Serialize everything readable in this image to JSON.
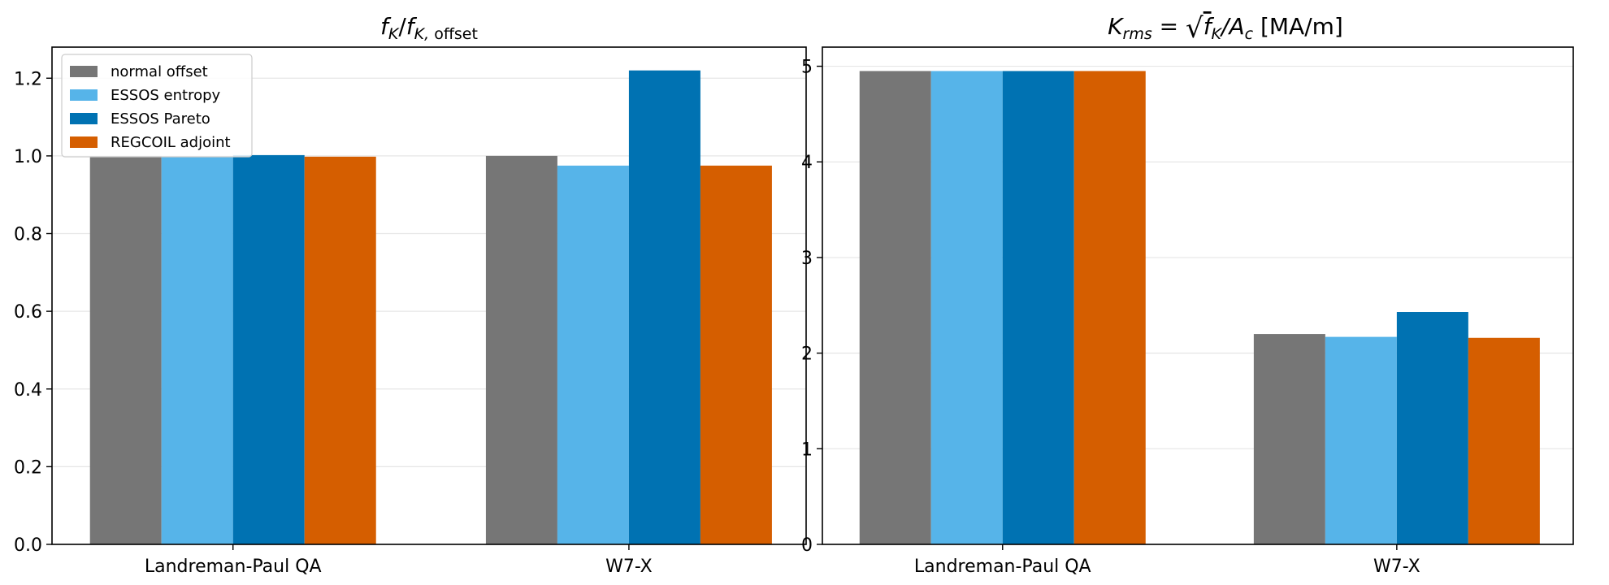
{
  "chart_data": [
    {
      "type": "bar",
      "title": "f_K / f_K,offset",
      "categories": [
        "Landreman-Paul QA",
        "W7-X"
      ],
      "ylim": [
        0,
        1.28
      ],
      "yticks": [
        0.0,
        0.2,
        0.4,
        0.6,
        0.8,
        1.0,
        1.2
      ],
      "ytick_labels": [
        "0.0",
        "0.2",
        "0.4",
        "0.6",
        "0.8",
        "1.0",
        "1.2"
      ],
      "grid": "horizontal",
      "legend_position": "top-left",
      "series": [
        {
          "name": "normal offset",
          "color": "#767676",
          "values": [
            1.0,
            1.0
          ]
        },
        {
          "name": "ESSOS entropy",
          "color": "#56b4e9",
          "values": [
            0.998,
            0.975
          ]
        },
        {
          "name": "ESSOS Pareto",
          "color": "#0072b2",
          "values": [
            1.002,
            1.22
          ]
        },
        {
          "name": "REGCOIL adjoint",
          "color": "#d55e00",
          "values": [
            0.998,
            0.975
          ]
        }
      ]
    },
    {
      "type": "bar",
      "title": "K_rms = √(f_K / A_c) [MA/m]",
      "categories": [
        "Landreman-Paul QA",
        "W7-X"
      ],
      "ylim": [
        0,
        5.2
      ],
      "yticks": [
        0,
        1,
        2,
        3,
        4,
        5
      ],
      "ytick_labels": [
        "0",
        "1",
        "2",
        "3",
        "4",
        "5"
      ],
      "grid": "horizontal",
      "series": [
        {
          "name": "normal offset",
          "color": "#767676",
          "values": [
            4.95,
            2.2
          ]
        },
        {
          "name": "ESSOS entropy",
          "color": "#56b4e9",
          "values": [
            4.95,
            2.17
          ]
        },
        {
          "name": "ESSOS Pareto",
          "color": "#0072b2",
          "values": [
            4.95,
            2.43
          ]
        },
        {
          "name": "REGCOIL adjoint",
          "color": "#d55e00",
          "values": [
            4.95,
            2.16
          ]
        }
      ]
    }
  ]
}
